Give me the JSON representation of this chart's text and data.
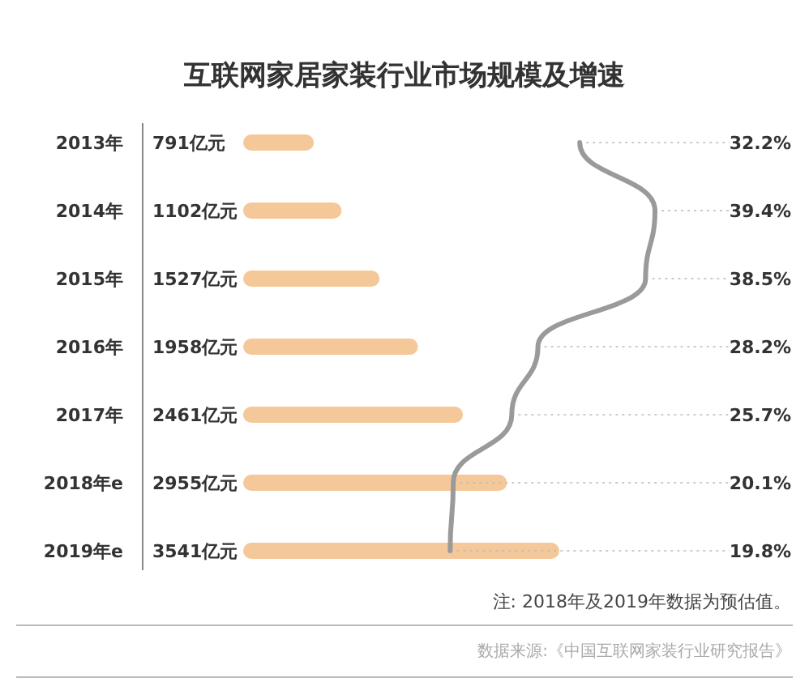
{
  "chart_data": [
    {
      "type": "bar",
      "orientation": "horizontal",
      "title": "互联网家居家装行业市场规模及增速",
      "categories": [
        "2013年",
        "2014年",
        "2015年",
        "2016年",
        "2017年",
        "2018年e",
        "2019年e"
      ],
      "series": [
        {
          "color": "#f5c89a",
          "values": [
            791,
            1102,
            1527,
            1958,
            2461,
            2955,
            3541
          ],
          "value_labels": [
            "791亿元",
            "1102亿元",
            "1527亿元",
            "1958亿元",
            "2461亿元",
            "2955亿元",
            "3541亿元"
          ]
        }
      ],
      "annotations": [
        "注: 2018年及2019年数据为预估值。",
        "数据来源:《中国互联网家装行业研究报告》"
      ]
    },
    {
      "type": "line",
      "orientation": "horizontal",
      "grid": "y",
      "categories": [
        null,
        null,
        null,
        null,
        null,
        null,
        null
      ],
      "series": [
        {
          "color": "#9a9a9a",
          "values": [
            32.2,
            39.4,
            38.5,
            28.2,
            25.7,
            20.1,
            19.8
          ],
          "value_labels": [
            "32.2%",
            "39.4%",
            "38.5%",
            "28.2%",
            "25.7%",
            "20.1%",
            "19.8%"
          ]
        }
      ]
    }
  ]
}
